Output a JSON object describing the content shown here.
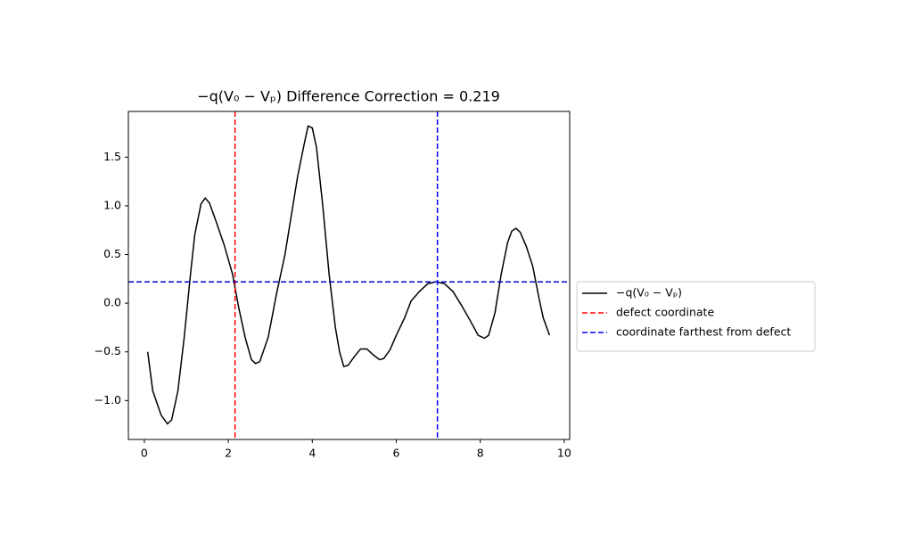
{
  "chart_data": {
    "type": "line",
    "title": "−q(V₀ − Vₚ) Difference Correction = 0.219",
    "x": [
      0.08,
      0.2,
      0.4,
      0.55,
      0.65,
      0.8,
      0.95,
      1.1,
      1.2,
      1.35,
      1.45,
      1.55,
      1.7,
      1.9,
      2.1,
      2.25,
      2.4,
      2.55,
      2.65,
      2.75,
      2.95,
      3.15,
      3.35,
      3.5,
      3.65,
      3.8,
      3.9,
      4.0,
      4.1,
      4.25,
      4.4,
      4.55,
      4.65,
      4.75,
      4.85,
      5.0,
      5.15,
      5.3,
      5.45,
      5.6,
      5.7,
      5.85,
      6.0,
      6.2,
      6.35,
      6.55,
      6.75,
      6.95,
      7.15,
      7.35,
      7.55,
      7.75,
      7.95,
      8.1,
      8.2,
      8.35,
      8.5,
      8.65,
      8.75,
      8.85,
      8.95,
      9.1,
      9.25,
      9.4,
      9.5,
      9.65
    ],
    "series": [
      {
        "name": "−q(V₀ − Vₚ)",
        "color": "#000000",
        "values": [
          -0.5,
          -0.9,
          -1.15,
          -1.24,
          -1.2,
          -0.9,
          -0.35,
          0.3,
          0.7,
          1.02,
          1.08,
          1.03,
          0.85,
          0.6,
          0.3,
          -0.05,
          -0.35,
          -0.58,
          -0.62,
          -0.6,
          -0.35,
          0.1,
          0.5,
          0.9,
          1.3,
          1.62,
          1.82,
          1.8,
          1.6,
          1.0,
          0.3,
          -0.25,
          -0.5,
          -0.65,
          -0.64,
          -0.55,
          -0.47,
          -0.47,
          -0.53,
          -0.58,
          -0.57,
          -0.48,
          -0.33,
          -0.15,
          0.02,
          0.12,
          0.2,
          0.22,
          0.2,
          0.12,
          -0.02,
          -0.17,
          -0.33,
          -0.36,
          -0.33,
          -0.1,
          0.3,
          0.62,
          0.74,
          0.77,
          0.73,
          0.58,
          0.38,
          0.05,
          -0.15,
          -0.33
        ]
      }
    ],
    "reference_lines": [
      {
        "name": "defect coordinate",
        "color": "#ff0000",
        "orientation": "vertical",
        "value": 2.16
      },
      {
        "name": "coordinate farthest from defect",
        "color": "#0000ff",
        "orientation": "vertical",
        "value": 6.98
      },
      {
        "color": "#0000cc",
        "orientation": "horizontal",
        "value": 0.219
      }
    ],
    "xlim": [
      -0.38,
      10.13
    ],
    "ylim": [
      -1.4,
      1.97
    ],
    "xticks": [
      0,
      2,
      4,
      6,
      8,
      10
    ],
    "yticks": [
      {
        "value": -1.0,
        "label": "−1.0"
      },
      {
        "value": -0.5,
        "label": "−0.5"
      },
      {
        "value": 0.0,
        "label": "0.0"
      },
      {
        "value": 0.5,
        "label": "0.5"
      },
      {
        "value": 1.0,
        "label": "1.0"
      },
      {
        "value": 1.5,
        "label": "1.5"
      }
    ],
    "legend": "outside-right"
  }
}
